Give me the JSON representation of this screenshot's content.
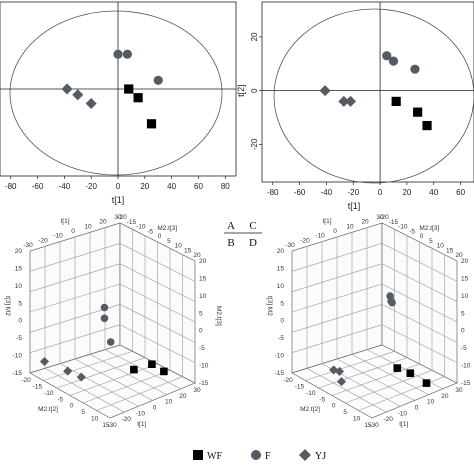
{
  "panel_key": {
    "top": [
      "A",
      "C"
    ],
    "bottom": [
      "B",
      "D"
    ]
  },
  "legend": [
    {
      "label": "WF",
      "marker": "square"
    },
    {
      "label": "F",
      "marker": "circle"
    },
    {
      "label": "YJ",
      "marker": "diamond"
    }
  ],
  "colors": {
    "square": "#000000",
    "circle": "#555b63",
    "diamond": "#555b63",
    "ellipse": "#555555"
  },
  "chart_data": [
    {
      "panel": "A",
      "type": "scatter",
      "xlabel": "t[1]",
      "ylabel": "",
      "xticks": [
        "-80",
        "-60",
        "-40",
        "-20",
        "0",
        "20",
        "40",
        "60",
        "80"
      ],
      "xlim": [
        -88,
        88
      ],
      "ylim": [
        -30,
        30
      ],
      "series": [
        {
          "marker": "circle",
          "points": [
            [
              0,
              12
            ],
            [
              7,
              12
            ],
            [
              30,
              3
            ]
          ]
        },
        {
          "marker": "square",
          "points": [
            [
              8,
              0
            ],
            [
              15,
              -3
            ],
            [
              25,
              -12
            ]
          ]
        },
        {
          "marker": "diamond",
          "points": [
            [
              -38,
              0
            ],
            [
              -30,
              -2
            ],
            [
              -20,
              -5
            ]
          ]
        }
      ]
    },
    {
      "panel": "C",
      "type": "scatter",
      "xlabel": "t[1]",
      "ylabel": "t[2]",
      "xticks": [
        "-80",
        "-60",
        "-40",
        "-20",
        "0",
        "20",
        "40",
        "60"
      ],
      "yticks": [
        "20",
        "0",
        "-20"
      ],
      "xlim": [
        -88,
        70
      ],
      "ylim": [
        -34,
        33
      ],
      "series": [
        {
          "marker": "circle",
          "points": [
            [
              5,
              13
            ],
            [
              10,
              11
            ],
            [
              26,
              8
            ]
          ]
        },
        {
          "marker": "square",
          "points": [
            [
              12,
              -4
            ],
            [
              28,
              -8
            ],
            [
              35,
              -13
            ]
          ]
        },
        {
          "marker": "diamond",
          "points": [
            [
              -41,
              0
            ],
            [
              -27,
              -4
            ],
            [
              -22,
              -4
            ]
          ]
        }
      ]
    },
    {
      "panel": "B",
      "type": "scatter3d",
      "axis_labels": [
        "t[1]",
        "M2.t[3]",
        "M2.t[3]",
        "t[3] M2",
        "M2.t[2]",
        "t[1]"
      ],
      "ticks_top_left": [
        "-30",
        "-20",
        "-10",
        "0",
        "10",
        "20",
        "30"
      ],
      "ticks_top_right": [
        "-20",
        "-15",
        "-10",
        "-5",
        "0",
        "5",
        "10",
        "15",
        "20"
      ],
      "ticks_left": [
        "20",
        "15",
        "10",
        "5",
        "0",
        "-5",
        "-10",
        "-15"
      ],
      "ticks_right": [
        "20",
        "15",
        "10",
        "5",
        "0",
        "-5",
        "-10",
        "-15"
      ],
      "ticks_bottom_left": [
        "-20",
        "-15",
        "-10",
        "-5",
        "0",
        "5",
        "10",
        "15"
      ],
      "ticks_bottom_right": [
        "-30",
        "-20",
        "-10",
        "0",
        "10",
        "20",
        "30"
      ],
      "series": [
        {
          "marker": "circle",
          "points": [
            [
              0,
              15,
              5
            ],
            [
              0,
              12,
              5
            ],
            [
              3,
              6,
              6
            ]
          ]
        },
        {
          "marker": "square",
          "points": [
            [
              17,
              0,
              3
            ],
            [
              21,
              -2,
              2
            ],
            [
              7,
              -4,
              -2
            ]
          ]
        },
        {
          "marker": "diamond",
          "points": [
            [
              -20,
              0,
              10
            ],
            [
              -16,
              -5,
              2
            ],
            [
              -12,
              -7,
              0
            ]
          ]
        }
      ]
    },
    {
      "panel": "D",
      "type": "scatter3d",
      "axis_labels": [
        "t[1]",
        "M2.t[3]",
        "M2.t[3]",
        "t[3] M2",
        "M2.t[2]",
        "t[1]"
      ],
      "ticks_top_left": [
        "-30",
        "-20",
        "-10",
        "0",
        "10",
        "20",
        "30"
      ],
      "ticks_top_right": [
        "-20",
        "-15",
        "-10",
        "-5",
        "0",
        "5",
        "10",
        "15",
        "20"
      ],
      "ticks_left": [
        "20",
        "15",
        "10",
        "5",
        "0",
        "-5",
        "-10",
        "-15"
      ],
      "ticks_right": [
        "20",
        "15",
        "10",
        "5",
        "0",
        "-5",
        "-10",
        "-15"
      ],
      "ticks_bottom_left": [
        "-20",
        "-15",
        "-10",
        "-5",
        "0",
        "5",
        "10",
        "15"
      ],
      "ticks_bottom_right": [
        "-30",
        "-20",
        "-10",
        "0",
        "10",
        "20",
        "30"
      ],
      "series": [
        {
          "marker": "circle",
          "points": [
            [
              6,
              17,
              0
            ],
            [
              7,
              16,
              1
            ],
            [
              8,
              16,
              2
            ]
          ]
        },
        {
          "marker": "square",
          "points": [
            [
              10,
              -2,
              2
            ],
            [
              15,
              -3,
              2
            ],
            [
              20,
              -6,
              0
            ]
          ]
        },
        {
          "marker": "diamond",
          "points": [
            [
              -12,
              -3,
              6
            ],
            [
              -11,
              -4,
              4
            ],
            [
              -9,
              -6,
              6
            ]
          ]
        }
      ]
    }
  ]
}
